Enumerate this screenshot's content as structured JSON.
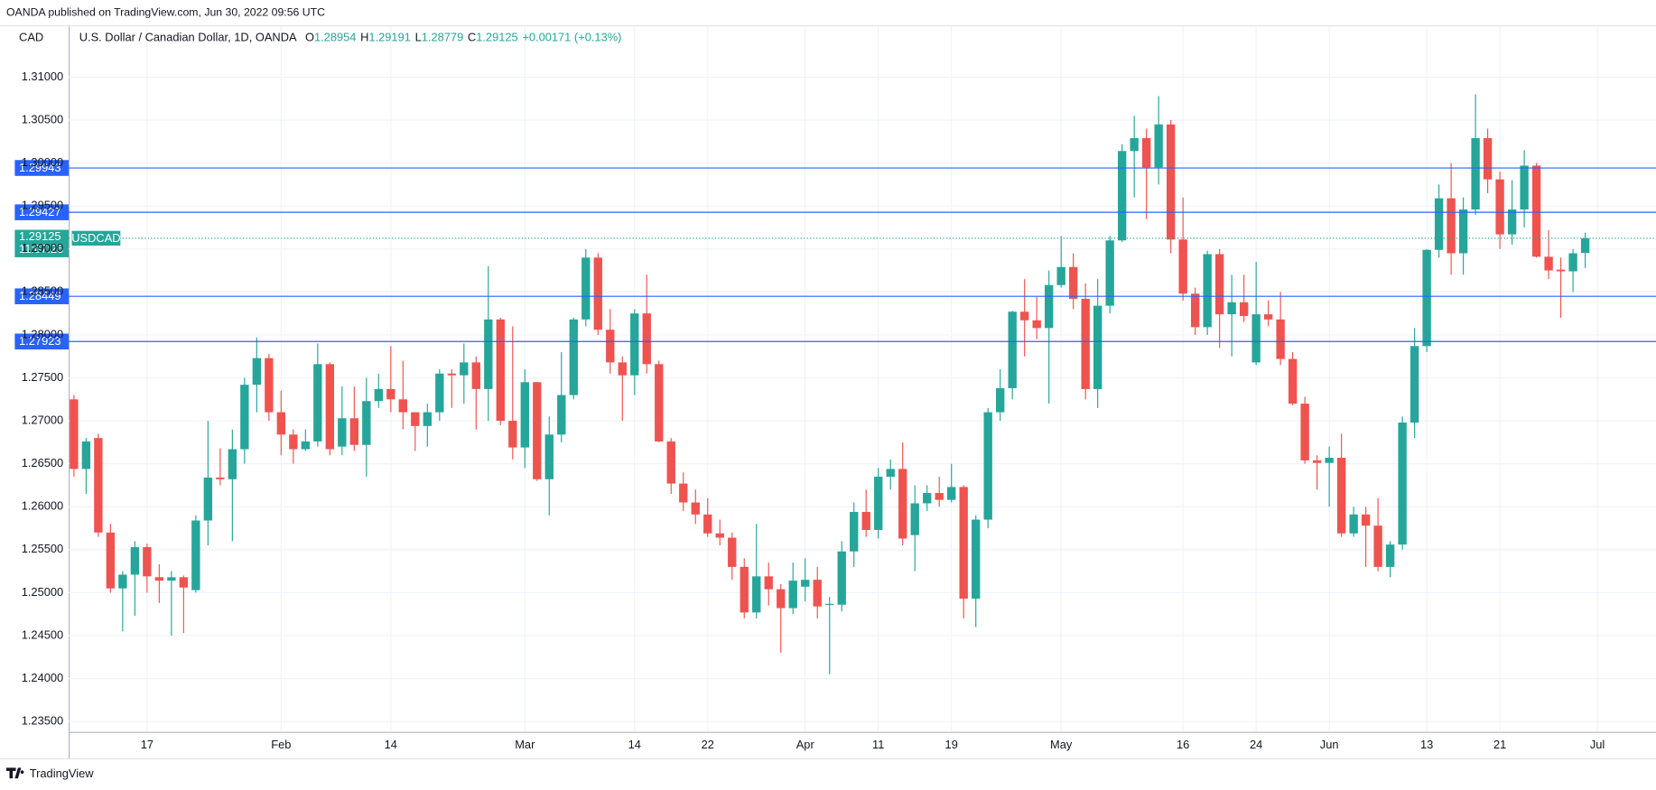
{
  "header": {
    "published": "OANDA published on TradingView.com, Jun 30, 2022 09:56 UTC",
    "currency": "CAD",
    "symbol": "U.S. Dollar / Canadian Dollar, 1D, OANDA",
    "o": "O",
    "h": "H",
    "l": "L",
    "c": "C",
    "change": "+0.00171 (+0.13%)"
  },
  "footer": {
    "brand": "TradingView"
  },
  "chart_data": {
    "type": "candlestick",
    "open": [
      1.2725,
      1.2644,
      1.268,
      1.257,
      1.2505,
      1.2521,
      1.2553,
      1.2518,
      1.2514,
      1.2518,
      1.2503,
      1.2584,
      1.2634,
      1.2632,
      1.2667,
      1.2742,
      1.2773,
      1.271,
      1.2684,
      1.2667,
      1.2676,
      1.2766,
      1.267,
      1.2703,
      1.2672,
      1.2723,
      1.2737,
      1.2725,
      1.271,
      1.2694,
      1.271,
      1.2755,
      1.2753,
      1.2768,
      1.2737,
      1.2818,
      1.27,
      1.2669,
      1.2745,
      1.2632,
      1.2684,
      1.273,
      1.2818,
      1.289,
      1.2806,
      1.2768,
      1.2753,
      1.2825,
      1.2766,
      1.2676,
      1.2627,
      1.2605,
      1.2591,
      1.2569,
      1.2564,
      1.253,
      1.2477,
      1.2519,
      1.2504,
      1.2482,
      1.2507,
      1.2515,
      1.2486,
      1.2486,
      1.2548,
      1.2594,
      1.2573,
      1.2635,
      1.2644,
      1.2567,
      1.2604,
      1.2616,
      1.2608,
      1.2623,
      1.2493,
      1.2585,
      1.271,
      1.2738,
      1.2827,
      1.2817,
      1.2808,
      1.2858,
      1.2879,
      1.2842,
      1.2737,
      1.2834,
      1.291,
      1.3014,
      1.3029,
      1.2995,
      1.3045,
      1.2911,
      1.2848,
      1.2809,
      1.2894,
      1.2824,
      1.2838,
      1.2768,
      1.2824,
      1.2818,
      1.2772,
      1.272,
      1.2654,
      1.2651,
      1.2657,
      1.2569,
      1.2591,
      1.2578,
      1.253,
      1.2556,
      1.2698,
      1.2787,
      1.2899,
      1.2959,
      1.2895,
      1.2946,
      1.3029,
      1.2981,
      1.2917,
      1.2946,
      1.2997,
      1.2891,
      1.2876,
      1.2874,
      1.28954
    ],
    "high": [
      1.273,
      1.268,
      1.2685,
      1.258,
      1.2525,
      1.256,
      1.2557,
      1.2533,
      1.2525,
      1.252,
      1.259,
      1.27,
      1.2668,
      1.269,
      1.275,
      1.2797,
      1.2778,
      1.2735,
      1.269,
      1.269,
      1.279,
      1.2768,
      1.274,
      1.274,
      1.275,
      1.2755,
      1.2787,
      1.277,
      1.271,
      1.272,
      1.276,
      1.276,
      1.279,
      1.2775,
      1.288,
      1.282,
      1.281,
      1.276,
      1.2745,
      1.2705,
      1.278,
      1.282,
      1.29,
      1.2895,
      1.283,
      1.2775,
      1.283,
      1.287,
      1.277,
      1.268,
      1.264,
      1.262,
      1.261,
      1.2585,
      1.257,
      1.254,
      1.258,
      1.2535,
      1.251,
      1.2535,
      1.254,
      1.253,
      1.2495,
      1.256,
      1.2605,
      1.262,
      1.2645,
      1.2655,
      1.2675,
      1.2625,
      1.2625,
      1.2635,
      1.265,
      1.2625,
      1.259,
      1.2715,
      1.276,
      1.2828,
      1.2865,
      1.2845,
      1.2875,
      1.2915,
      1.2895,
      1.286,
      1.2865,
      1.2915,
      1.3022,
      1.3055,
      1.304,
      1.3078,
      1.305,
      1.296,
      1.2855,
      1.2898,
      1.29,
      1.287,
      1.287,
      1.2885,
      1.284,
      1.285,
      1.278,
      1.2728,
      1.266,
      1.267,
      1.2685,
      1.26,
      1.26,
      1.261,
      1.256,
      1.2705,
      1.2808,
      1.29,
      1.2975,
      1.3,
      1.296,
      1.308,
      1.304,
      1.299,
      1.298,
      1.3015,
      1.3,
      1.2922,
      1.289,
      1.29,
      1.29191
    ],
    "low": [
      1.2635,
      1.2615,
      1.2565,
      1.25,
      1.2455,
      1.2473,
      1.25,
      1.2488,
      1.245,
      1.2453,
      1.25,
      1.2555,
      1.2625,
      1.256,
      1.265,
      1.271,
      1.27,
      1.266,
      1.265,
      1.2665,
      1.267,
      1.266,
      1.266,
      1.2665,
      1.2635,
      1.2715,
      1.271,
      1.269,
      1.2665,
      1.267,
      1.27,
      1.2715,
      1.272,
      1.269,
      1.27,
      1.2695,
      1.2655,
      1.2645,
      1.263,
      1.259,
      1.2675,
      1.2725,
      1.281,
      1.28,
      1.2755,
      1.27,
      1.273,
      1.2755,
      1.2675,
      1.2615,
      1.2595,
      1.258,
      1.2565,
      1.2555,
      1.2515,
      1.247,
      1.247,
      1.2485,
      1.243,
      1.2475,
      1.249,
      1.247,
      1.2405,
      1.2478,
      1.253,
      1.2565,
      1.2563,
      1.262,
      1.2555,
      1.2525,
      1.2595,
      1.26,
      1.2605,
      1.247,
      1.246,
      1.2575,
      1.27,
      1.2725,
      1.2775,
      1.2795,
      1.272,
      1.2855,
      1.283,
      1.2725,
      1.2715,
      1.2825,
      1.2908,
      1.296,
      1.2935,
      1.2975,
      1.2895,
      1.284,
      1.28,
      1.28,
      1.2785,
      1.2775,
      1.2815,
      1.2765,
      1.281,
      1.2765,
      1.2718,
      1.265,
      1.262,
      1.26,
      1.2565,
      1.2565,
      1.253,
      1.2525,
      1.2518,
      1.255,
      1.268,
      1.278,
      1.289,
      1.287,
      1.287,
      1.294,
      1.2965,
      1.29,
      1.2905,
      1.2925,
      1.289,
      1.2865,
      1.282,
      1.285,
      1.28779
    ],
    "close": [
      1.2644,
      1.2676,
      1.257,
      1.2505,
      1.2521,
      1.2553,
      1.2519,
      1.2514,
      1.2518,
      1.2506,
      1.2584,
      1.2634,
      1.2632,
      1.2667,
      1.2742,
      1.2773,
      1.271,
      1.2684,
      1.2667,
      1.2676,
      1.2766,
      1.2667,
      1.2703,
      1.2672,
      1.2723,
      1.2737,
      1.2725,
      1.271,
      1.2694,
      1.271,
      1.2755,
      1.2753,
      1.2768,
      1.2737,
      1.2818,
      1.27,
      1.2669,
      1.2745,
      1.2632,
      1.2684,
      1.273,
      1.2818,
      1.289,
      1.2806,
      1.2768,
      1.2753,
      1.2825,
      1.2766,
      1.2676,
      1.2627,
      1.2605,
      1.2591,
      1.2569,
      1.2564,
      1.253,
      1.2477,
      1.2519,
      1.2504,
      1.2482,
      1.2514,
      1.2515,
      1.2484,
      1.2487,
      1.2548,
      1.2594,
      1.2573,
      1.2635,
      1.2644,
      1.2563,
      1.2604,
      1.2616,
      1.2608,
      1.2623,
      1.2493,
      1.2585,
      1.271,
      1.2738,
      1.2827,
      1.2817,
      1.2808,
      1.2858,
      1.2879,
      1.2842,
      1.2737,
      1.2834,
      1.291,
      1.3014,
      1.3029,
      1.2995,
      1.3045,
      1.2911,
      1.2848,
      1.2809,
      1.2894,
      1.2824,
      1.2838,
      1.2822,
      1.2824,
      1.2818,
      1.2772,
      1.272,
      1.2654,
      1.2651,
      1.2657,
      1.2569,
      1.2591,
      1.2578,
      1.253,
      1.2556,
      1.2698,
      1.2787,
      1.2899,
      1.2959,
      1.2895,
      1.2946,
      1.3029,
      1.2981,
      1.2917,
      1.2946,
      1.2997,
      1.2891,
      1.2875,
      1.2874,
      1.2895,
      1.29125
    ],
    "up_color": "#26a69a",
    "down_color": "#ef5350",
    "ylim": [
      1.2338,
      1.3159
    ],
    "yticks": [
      {
        "value": 1.31,
        "label": "1.31000"
      },
      {
        "value": 1.305,
        "label": "1.30500"
      },
      {
        "value": 1.3,
        "label": "1.30000"
      },
      {
        "value": 1.295,
        "label": "1.29500"
      },
      {
        "value": 1.29,
        "label": "1.29000"
      },
      {
        "value": 1.285,
        "label": "1.28500"
      },
      {
        "value": 1.28,
        "label": "1.28000"
      },
      {
        "value": 1.275,
        "label": "1.27500"
      },
      {
        "value": 1.27,
        "label": "1.27000"
      },
      {
        "value": 1.265,
        "label": "1.26500"
      },
      {
        "value": 1.26,
        "label": "1.26000"
      },
      {
        "value": 1.255,
        "label": "1.25500"
      },
      {
        "value": 1.25,
        "label": "1.25000"
      },
      {
        "value": 1.245,
        "label": "1.24500"
      },
      {
        "value": 1.24,
        "label": "1.24000"
      },
      {
        "value": 1.235,
        "label": "1.23500"
      }
    ],
    "xticks": [
      {
        "value": 6,
        "label": "17"
      },
      {
        "value": 17,
        "label": "Feb"
      },
      {
        "value": 26,
        "label": "14"
      },
      {
        "value": 37,
        "label": "Mar"
      },
      {
        "value": 46,
        "label": "14"
      },
      {
        "value": 52,
        "label": "22"
      },
      {
        "value": 60,
        "label": "Apr"
      },
      {
        "value": 66,
        "label": "11"
      },
      {
        "value": 72,
        "label": "19"
      },
      {
        "value": 81,
        "label": "May"
      },
      {
        "value": 91,
        "label": "16"
      },
      {
        "value": 97,
        "label": "24"
      },
      {
        "value": 103,
        "label": "Jun"
      },
      {
        "value": 111,
        "label": "13"
      },
      {
        "value": 117,
        "label": "21"
      },
      {
        "value": 125,
        "label": "Jul"
      }
    ],
    "grid": true,
    "levels": {
      "values": [
        1.29943,
        1.29427,
        1.28449,
        1.27923
      ],
      "color": "#2962ff"
    },
    "last_price": {
      "symbol": "USDCAD",
      "countdown": "11:07:26"
    }
  }
}
